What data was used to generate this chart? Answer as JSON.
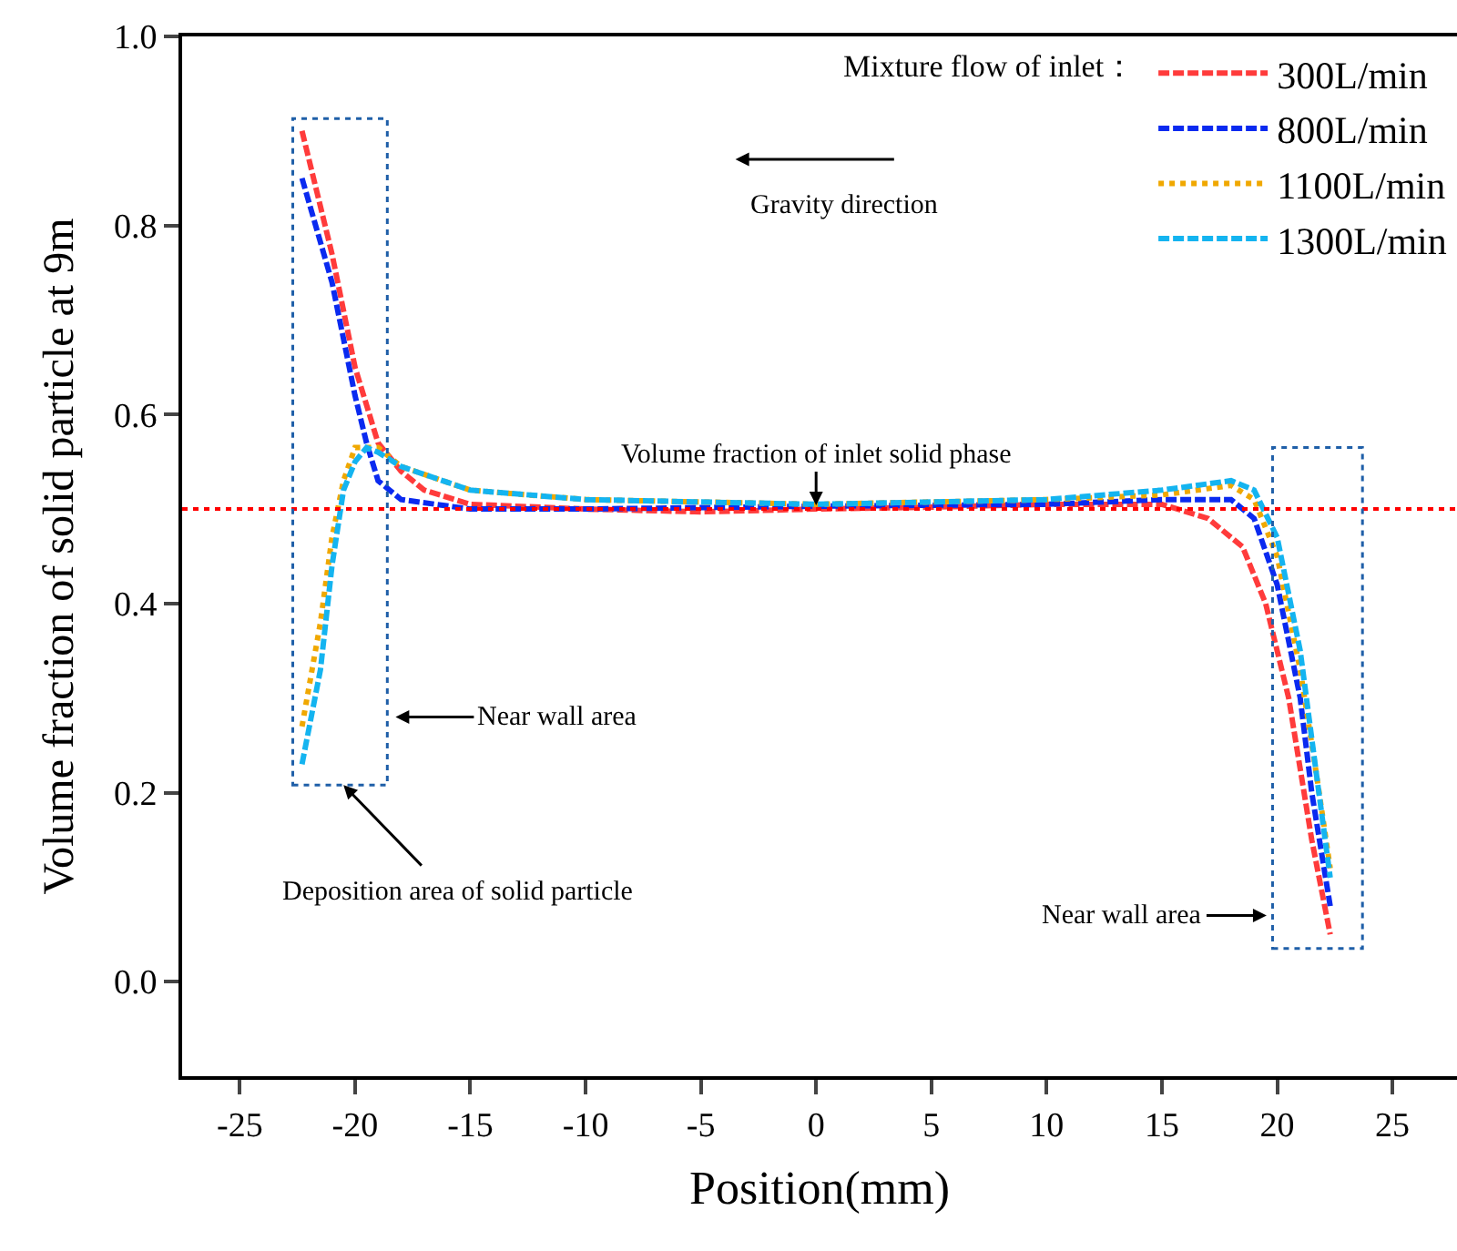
{
  "chart_data": {
    "type": "line",
    "xlabel": "Position(mm)",
    "ylabel": "Volume fraction of solid particle at 9m",
    "legend_title": "Mixture flow of inlet：",
    "legend": "top right",
    "xlim": [
      -27.5,
      27.8
    ],
    "ylim": [
      -0.1,
      1.0
    ],
    "xticks": [
      -25,
      -20,
      -15,
      -10,
      -5,
      0,
      5,
      10,
      15,
      20,
      25
    ],
    "yticks": [
      {
        "value": 0,
        "label": "0.0"
      },
      {
        "value": 0.2,
        "label": "0.2"
      },
      {
        "value": 0.4,
        "label": "0.4"
      },
      {
        "value": 0.6,
        "label": "0.6"
      },
      {
        "value": 0.8,
        "label": "0.8"
      },
      {
        "value": 1,
        "label": "1.0"
      }
    ],
    "marker": "none",
    "ref_lines": [
      {
        "axis": "y",
        "value": 0.5,
        "color": "#ff0000",
        "line_style": "dotted"
      }
    ],
    "annotations": [
      "Gravity direction",
      {
        "text": "Volume fraction of inlet solid phase",
        "x": 0,
        "y": 0.5
      },
      "Near wall area",
      "Deposition area of solid particle",
      "Near wall area"
    ],
    "series": [
      {
        "name": "300L/min",
        "color": "#ff3b3b",
        "line_style": "dashed",
        "x": [
          -22.3,
          -21,
          -20,
          -19,
          -18,
          -17,
          -15,
          -10,
          -5,
          0,
          5,
          10,
          15,
          17,
          18.5,
          19.5,
          20.5,
          21.5,
          22.3
        ],
        "values": [
          0.9,
          0.77,
          0.65,
          0.57,
          0.54,
          0.52,
          0.505,
          0.5,
          0.497,
          0.5,
          0.502,
          0.505,
          0.505,
          0.49,
          0.46,
          0.4,
          0.3,
          0.15,
          0.05
        ]
      },
      {
        "name": "800L/min",
        "color": "#0a2af0",
        "line_style": "dashed",
        "x": [
          -22.3,
          -21,
          -20,
          -19.5,
          -19,
          -18,
          -15,
          -10,
          0,
          10,
          15,
          18,
          19,
          20,
          21,
          21.5,
          22.3
        ],
        "values": [
          0.85,
          0.74,
          0.62,
          0.57,
          0.53,
          0.51,
          0.5,
          0.5,
          0.503,
          0.505,
          0.51,
          0.51,
          0.49,
          0.42,
          0.3,
          0.2,
          0.08
        ]
      },
      {
        "name": "1100L/min",
        "color": "#f0a800",
        "line_style": "dotted",
        "x": [
          -22.3,
          -21.5,
          -21,
          -20.5,
          -20,
          -19,
          -18,
          -15,
          -10,
          0,
          10,
          15,
          18,
          19,
          20,
          21,
          21.7,
          22.3
        ],
        "values": [
          0.27,
          0.38,
          0.47,
          0.53,
          0.565,
          0.565,
          0.545,
          0.52,
          0.51,
          0.505,
          0.51,
          0.515,
          0.525,
          0.51,
          0.45,
          0.33,
          0.22,
          0.12
        ]
      },
      {
        "name": "1300L/min",
        "color": "#14b4f0",
        "line_style": "dashed",
        "x": [
          -22.3,
          -21.5,
          -21,
          -20.5,
          -20,
          -19.5,
          -19,
          -18,
          -15,
          -10,
          0,
          10,
          15,
          18,
          19,
          20,
          21,
          21.7,
          22.3
        ],
        "values": [
          0.23,
          0.33,
          0.44,
          0.52,
          0.55,
          0.565,
          0.56,
          0.545,
          0.52,
          0.51,
          0.505,
          0.51,
          0.52,
          0.53,
          0.52,
          0.47,
          0.35,
          0.22,
          0.11
        ]
      }
    ]
  }
}
